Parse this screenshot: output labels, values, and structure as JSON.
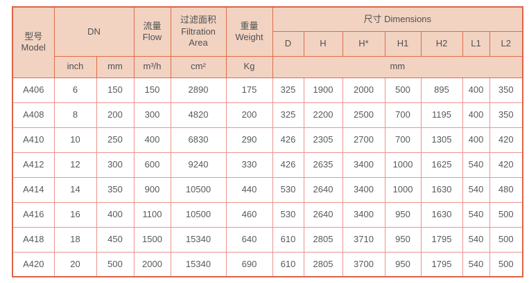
{
  "table": {
    "header": {
      "model": "型号\nModel",
      "dn": "DN",
      "flow": "流量\nFlow",
      "filtration_area": "过滤面积\nFiltration\nArea",
      "weight": "重量\nWeight",
      "dimensions": "尺寸 Dimensions",
      "dimension_columns": [
        "D",
        "H",
        "H*",
        "H1",
        "H2",
        "L1",
        "L2"
      ],
      "unit_inch": "inch",
      "unit_mm": "mm",
      "unit_flow": "m³/h",
      "unit_area": "cm²",
      "unit_weight": "Kg",
      "unit_dimensions": "mm"
    },
    "rows": [
      [
        "A406",
        "6",
        "150",
        "150",
        "2890",
        "175",
        "325",
        "1900",
        "2000",
        "500",
        "895",
        "400",
        "350"
      ],
      [
        "A408",
        "8",
        "200",
        "300",
        "4820",
        "200",
        "325",
        "2200",
        "2500",
        "700",
        "1195",
        "400",
        "350"
      ],
      [
        "A410",
        "10",
        "250",
        "400",
        "6830",
        "290",
        "426",
        "2305",
        "2700",
        "700",
        "1305",
        "400",
        "420"
      ],
      [
        "A412",
        "12",
        "300",
        "600",
        "9240",
        "330",
        "426",
        "2635",
        "3400",
        "1000",
        "1625",
        "540",
        "420"
      ],
      [
        "A414",
        "14",
        "350",
        "900",
        "10500",
        "440",
        "530",
        "2640",
        "3400",
        "1000",
        "1630",
        "540",
        "480"
      ],
      [
        "A416",
        "16",
        "400",
        "1100",
        "10500",
        "460",
        "530",
        "2640",
        "3400",
        "950",
        "1630",
        "540",
        "500"
      ],
      [
        "A418",
        "18",
        "450",
        "1500",
        "15340",
        "640",
        "610",
        "2805",
        "3710",
        "950",
        "1795",
        "540",
        "500"
      ],
      [
        "A420",
        "20",
        "500",
        "2000",
        "15340",
        "690",
        "610",
        "2805",
        "3700",
        "950",
        "1795",
        "540",
        "500"
      ]
    ]
  },
  "colors": {
    "header_bg": "#f2d3c2",
    "header_border": "#dd6a47",
    "outer_border": "#dc6243",
    "data_border": "#ea938c",
    "text": "#57585a"
  }
}
